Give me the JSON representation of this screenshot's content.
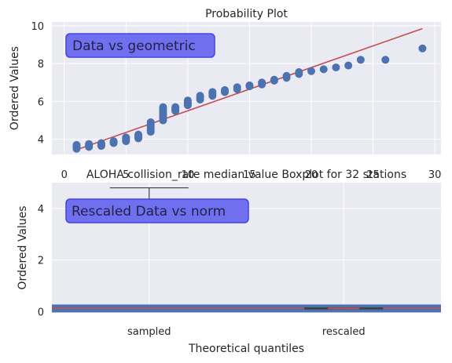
{
  "colors": {
    "background": "#eaeaf2",
    "grid": "#ffffff",
    "points": "#4c72b0",
    "fit_line": "#c44e52",
    "label_box_fill": "#6f6ff0",
    "label_box_edge": "#4343e6",
    "box_edge": "#3f3f3f"
  },
  "chart_data": [
    {
      "type": "scatter",
      "title": "Probability Plot",
      "xlabel": "",
      "ylabel": "Ordered Values",
      "annotation": "Data vs geometric",
      "xlim": [
        -1,
        30.5
      ],
      "ylim": [
        3.2,
        10.2
      ],
      "xticks": [
        0,
        5,
        10,
        15,
        20,
        25,
        30
      ],
      "yticks": [
        4,
        6,
        8,
        10
      ],
      "grid": true,
      "series": [
        {
          "kind": "points",
          "x": [
            1,
            1,
            1,
            1,
            1,
            2,
            2,
            2,
            2,
            3,
            3,
            3,
            3,
            4,
            4,
            4,
            5,
            5,
            5,
            5,
            5,
            6,
            6,
            6,
            6,
            6,
            7,
            7,
            7,
            7,
            7,
            7,
            8,
            8,
            8,
            8,
            8,
            8,
            8,
            8,
            9,
            9,
            9,
            9,
            9,
            10,
            10,
            10,
            10,
            10,
            11,
            11,
            11,
            12,
            12,
            12,
            13,
            13,
            14,
            14,
            15,
            15,
            16,
            16,
            17,
            17,
            18,
            18,
            19,
            19,
            20,
            21,
            22,
            23,
            24,
            26,
            29
          ],
          "y": [
            3.5,
            3.55,
            3.6,
            3.65,
            3.7,
            3.6,
            3.65,
            3.7,
            3.75,
            3.65,
            3.7,
            3.75,
            3.8,
            3.8,
            3.85,
            3.9,
            3.9,
            3.95,
            4.0,
            4.05,
            4.1,
            4.05,
            4.1,
            4.15,
            4.2,
            4.25,
            4.4,
            4.5,
            4.6,
            4.7,
            4.8,
            4.9,
            5.0,
            5.1,
            5.2,
            5.3,
            5.4,
            5.5,
            5.6,
            5.7,
            5.5,
            5.55,
            5.6,
            5.65,
            5.7,
            5.8,
            5.85,
            5.9,
            5.95,
            6.05,
            6.1,
            6.2,
            6.3,
            6.3,
            6.4,
            6.5,
            6.5,
            6.6,
            6.65,
            6.75,
            6.8,
            6.85,
            6.9,
            7.0,
            7.1,
            7.15,
            7.25,
            7.35,
            7.45,
            7.55,
            7.6,
            7.7,
            7.8,
            7.9,
            8.2,
            8.2,
            8.8
          ]
        },
        {
          "kind": "fit-line",
          "x": [
            1,
            29
          ],
          "y": [
            3.45,
            9.85
          ]
        }
      ]
    },
    {
      "type": "box",
      "title": "ALOHA collision_rate median value Boxplot for 32 stations",
      "xlabel": "Theoretical quantiles",
      "ylabel": "Ordered Values",
      "annotation": "Rescaled Data vs norm",
      "categories": [
        "sampled",
        "rescaled"
      ],
      "ylim": [
        -0.05,
        5.0
      ],
      "yticks": [
        0,
        2,
        4
      ],
      "grid": true,
      "boxes": [
        {
          "category": "sampled",
          "whisker_low": 3.55,
          "q1": 3.8,
          "median": 3.85,
          "q3": 4.0,
          "whisker_high": 4.8
        },
        {
          "category": "rescaled",
          "whisker_low": 0.12,
          "q1": 0.12,
          "median": 0.12,
          "q3": 0.12,
          "whisker_high": 0.12
        }
      ],
      "baseline": {
        "y": 0.12
      }
    }
  ]
}
